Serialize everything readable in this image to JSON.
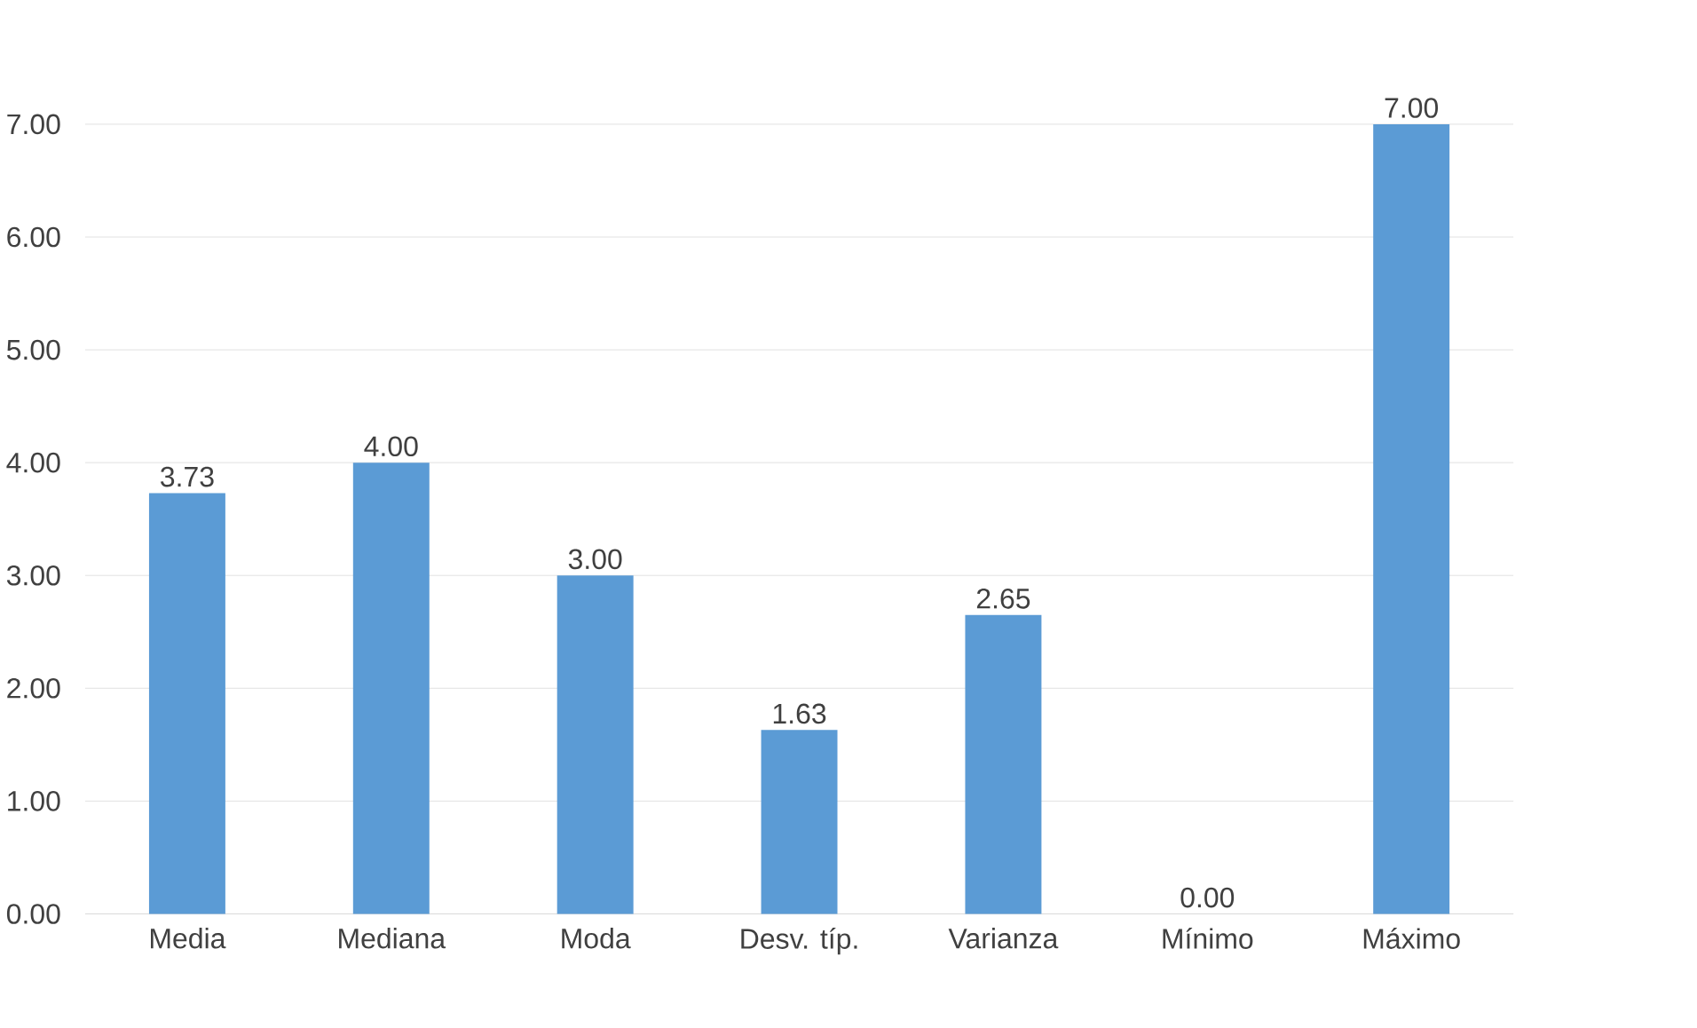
{
  "chart_data": {
    "type": "bar",
    "categories": [
      "Media",
      "Mediana",
      "Moda",
      "Desv. típ.",
      "Varianza",
      "Mínimo",
      "Máximo"
    ],
    "values": [
      3.73,
      4.0,
      3.0,
      1.63,
      2.65,
      0.0,
      7.0
    ],
    "value_labels": [
      "3.73",
      "4.00",
      "3.00",
      "1.63",
      "2.65",
      "0.00",
      "7.00"
    ],
    "color": "#5b9bd5",
    "ylim": [
      0,
      7
    ],
    "yticks": [
      {
        "value": 0,
        "label": "0.00"
      },
      {
        "value": 1,
        "label": "1.00"
      },
      {
        "value": 2,
        "label": "2.00"
      },
      {
        "value": 3,
        "label": "3.00"
      },
      {
        "value": 4,
        "label": "4.00"
      },
      {
        "value": 5,
        "label": "5.00"
      },
      {
        "value": 6,
        "label": "6.00"
      },
      {
        "value": 7,
        "label": "7.00"
      }
    ],
    "grid": "y"
  }
}
